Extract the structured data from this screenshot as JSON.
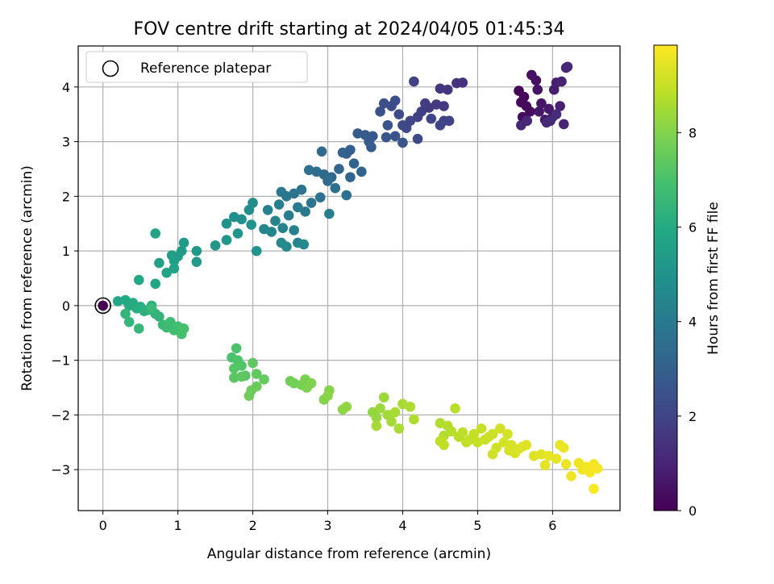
{
  "chart_data": {
    "type": "scatter",
    "title": "FOV centre drift starting at 2024/04/05 01:45:34",
    "xlabel": "Angular distance from reference (arcmin)",
    "ylabel": "Rotation from reference (arcmin)",
    "xlim": [
      -0.33,
      6.9
    ],
    "ylim": [
      -3.75,
      4.75
    ],
    "xticks": [
      0,
      1,
      2,
      3,
      4,
      5,
      6
    ],
    "xtick_labels": [
      "0",
      "1",
      "2",
      "3",
      "4",
      "5",
      "6"
    ],
    "yticks": [
      -3,
      -2,
      -1,
      0,
      1,
      2,
      3,
      4
    ],
    "ytick_labels": [
      "−3",
      "−2",
      "−1",
      "0",
      "1",
      "2",
      "3",
      "4"
    ],
    "grid": true,
    "colormap": "viridis",
    "colorbar": {
      "label": "Hours from first FF file",
      "range": [
        0,
        9.85
      ],
      "ticks": [
        0,
        2,
        4,
        6,
        8
      ],
      "tick_labels": [
        "0",
        "2",
        "4",
        "6",
        "8"
      ]
    },
    "legend": {
      "position": "top-left",
      "entries": [
        "Reference platepar"
      ]
    },
    "reference_point": {
      "x": 0,
      "y": 0,
      "hours": 0
    },
    "points": [
      {
        "x": 5.55,
        "y": 3.93,
        "t": 0.1
      },
      {
        "x": 5.62,
        "y": 3.82,
        "t": 0.15
      },
      {
        "x": 5.58,
        "y": 3.72,
        "t": 0.2
      },
      {
        "x": 5.65,
        "y": 3.65,
        "t": 0.25
      },
      {
        "x": 5.7,
        "y": 3.55,
        "t": 0.3
      },
      {
        "x": 5.6,
        "y": 3.45,
        "t": 0.35
      },
      {
        "x": 5.72,
        "y": 4.22,
        "t": 0.4
      },
      {
        "x": 5.78,
        "y": 4.12,
        "t": 0.45
      },
      {
        "x": 5.8,
        "y": 3.95,
        "t": 0.5
      },
      {
        "x": 5.85,
        "y": 3.7,
        "t": 0.55
      },
      {
        "x": 5.82,
        "y": 3.55,
        "t": 0.6
      },
      {
        "x": 5.9,
        "y": 3.4,
        "t": 0.65
      },
      {
        "x": 5.95,
        "y": 3.6,
        "t": 0.7
      },
      {
        "x": 6.0,
        "y": 3.45,
        "t": 0.75
      },
      {
        "x": 6.02,
        "y": 3.95,
        "t": 0.8
      },
      {
        "x": 6.05,
        "y": 4.08,
        "t": 0.85
      },
      {
        "x": 6.1,
        "y": 3.65,
        "t": 0.9
      },
      {
        "x": 6.12,
        "y": 4.1,
        "t": 0.95
      },
      {
        "x": 6.15,
        "y": 3.32,
        "t": 1.0
      },
      {
        "x": 6.2,
        "y": 4.37,
        "t": 1.05
      },
      {
        "x": 6.18,
        "y": 4.35,
        "t": 1.1
      },
      {
        "x": 5.58,
        "y": 3.3,
        "t": 1.12
      },
      {
        "x": 5.66,
        "y": 3.38,
        "t": 1.15
      },
      {
        "x": 5.92,
        "y": 3.35,
        "t": 1.18
      },
      {
        "x": 5.97,
        "y": 3.38,
        "t": 1.2
      },
      {
        "x": 6.05,
        "y": 3.5,
        "t": 1.22
      },
      {
        "x": 4.8,
        "y": 4.08,
        "t": 1.4
      },
      {
        "x": 4.72,
        "y": 4.07,
        "t": 1.45
      },
      {
        "x": 4.6,
        "y": 3.95,
        "t": 1.5
      },
      {
        "x": 4.5,
        "y": 3.97,
        "t": 1.55
      },
      {
        "x": 4.55,
        "y": 3.65,
        "t": 1.6
      },
      {
        "x": 4.45,
        "y": 3.68,
        "t": 1.65
      },
      {
        "x": 4.35,
        "y": 3.62,
        "t": 1.7
      },
      {
        "x": 4.3,
        "y": 3.7,
        "t": 1.75
      },
      {
        "x": 4.25,
        "y": 3.55,
        "t": 1.8
      },
      {
        "x": 4.2,
        "y": 3.45,
        "t": 1.85
      },
      {
        "x": 4.15,
        "y": 4.1,
        "t": 1.9
      },
      {
        "x": 4.55,
        "y": 3.38,
        "t": 1.92
      },
      {
        "x": 4.62,
        "y": 3.38,
        "t": 1.95
      },
      {
        "x": 4.5,
        "y": 3.3,
        "t": 1.98
      },
      {
        "x": 4.38,
        "y": 3.42,
        "t": 2.0
      },
      {
        "x": 4.1,
        "y": 3.38,
        "t": 2.05
      },
      {
        "x": 4.05,
        "y": 3.25,
        "t": 2.1
      },
      {
        "x": 4.0,
        "y": 3.3,
        "t": 2.15
      },
      {
        "x": 4.2,
        "y": 3.05,
        "t": 2.2
      },
      {
        "x": 3.95,
        "y": 3.5,
        "t": 2.25
      },
      {
        "x": 3.9,
        "y": 3.75,
        "t": 2.3
      },
      {
        "x": 3.85,
        "y": 3.65,
        "t": 2.35
      },
      {
        "x": 3.75,
        "y": 3.7,
        "t": 2.4
      },
      {
        "x": 3.7,
        "y": 3.55,
        "t": 2.45
      },
      {
        "x": 3.8,
        "y": 3.3,
        "t": 2.5
      },
      {
        "x": 3.9,
        "y": 3.1,
        "t": 2.55
      },
      {
        "x": 4.0,
        "y": 2.98,
        "t": 2.6
      },
      {
        "x": 3.78,
        "y": 3.08,
        "t": 2.65
      },
      {
        "x": 3.6,
        "y": 3.1,
        "t": 2.7
      },
      {
        "x": 3.55,
        "y": 3.0,
        "t": 2.75
      },
      {
        "x": 3.5,
        "y": 3.12,
        "t": 2.8
      },
      {
        "x": 3.4,
        "y": 3.15,
        "t": 2.85
      },
      {
        "x": 3.58,
        "y": 2.9,
        "t": 2.9
      },
      {
        "x": 3.3,
        "y": 2.85,
        "t": 2.95
      },
      {
        "x": 3.25,
        "y": 2.78,
        "t": 3.0
      },
      {
        "x": 3.2,
        "y": 2.8,
        "t": 3.05
      },
      {
        "x": 3.35,
        "y": 2.6,
        "t": 3.1
      },
      {
        "x": 3.45,
        "y": 2.45,
        "t": 3.15
      },
      {
        "x": 3.3,
        "y": 2.35,
        "t": 3.2
      },
      {
        "x": 3.15,
        "y": 2.5,
        "t": 3.25
      },
      {
        "x": 3.05,
        "y": 2.35,
        "t": 3.3
      },
      {
        "x": 2.95,
        "y": 2.4,
        "t": 3.35
      },
      {
        "x": 2.92,
        "y": 2.82,
        "t": 3.4
      },
      {
        "x": 3.0,
        "y": 2.28,
        "t": 3.45
      },
      {
        "x": 2.85,
        "y": 2.45,
        "t": 3.5
      },
      {
        "x": 2.75,
        "y": 2.48,
        "t": 3.55
      },
      {
        "x": 3.1,
        "y": 2.15,
        "t": 3.6
      },
      {
        "x": 3.25,
        "y": 2.02,
        "t": 3.65
      },
      {
        "x": 2.9,
        "y": 1.98,
        "t": 3.7
      },
      {
        "x": 2.78,
        "y": 1.88,
        "t": 3.75
      },
      {
        "x": 2.65,
        "y": 2.12,
        "t": 3.8
      },
      {
        "x": 2.55,
        "y": 2.05,
        "t": 3.85
      },
      {
        "x": 2.45,
        "y": 2.0,
        "t": 3.9
      },
      {
        "x": 2.38,
        "y": 2.08,
        "t": 3.95
      },
      {
        "x": 2.7,
        "y": 1.72,
        "t": 4.0
      },
      {
        "x": 2.6,
        "y": 1.8,
        "t": 4.05
      },
      {
        "x": 2.48,
        "y": 1.65,
        "t": 4.1
      },
      {
        "x": 3.02,
        "y": 1.68,
        "t": 4.15
      },
      {
        "x": 2.35,
        "y": 1.85,
        "t": 4.2
      },
      {
        "x": 2.2,
        "y": 1.75,
        "t": 4.25
      },
      {
        "x": 2.55,
        "y": 1.38,
        "t": 4.3
      },
      {
        "x": 2.4,
        "y": 1.42,
        "t": 4.35
      },
      {
        "x": 2.3,
        "y": 1.55,
        "t": 4.4
      },
      {
        "x": 2.25,
        "y": 1.35,
        "t": 4.45
      },
      {
        "x": 2.15,
        "y": 1.4,
        "t": 4.5
      },
      {
        "x": 2.6,
        "y": 1.15,
        "t": 4.55
      },
      {
        "x": 2.38,
        "y": 1.15,
        "t": 4.6
      },
      {
        "x": 2.68,
        "y": 1.12,
        "t": 4.65
      },
      {
        "x": 2.45,
        "y": 1.08,
        "t": 4.7
      },
      {
        "x": 2.0,
        "y": 1.88,
        "t": 4.75
      },
      {
        "x": 1.95,
        "y": 1.75,
        "t": 4.8
      },
      {
        "x": 1.85,
        "y": 1.58,
        "t": 4.85
      },
      {
        "x": 1.75,
        "y": 1.62,
        "t": 4.9
      },
      {
        "x": 1.65,
        "y": 1.5,
        "t": 4.95
      },
      {
        "x": 1.98,
        "y": 1.48,
        "t": 5.0
      },
      {
        "x": 1.8,
        "y": 1.32,
        "t": 5.05
      },
      {
        "x": 2.05,
        "y": 1.0,
        "t": 5.1
      },
      {
        "x": 1.65,
        "y": 1.2,
        "t": 5.15
      },
      {
        "x": 1.5,
        "y": 1.1,
        "t": 5.2
      },
      {
        "x": 1.25,
        "y": 1.0,
        "t": 5.25
      },
      {
        "x": 1.25,
        "y": 0.8,
        "t": 5.3
      },
      {
        "x": 1.08,
        "y": 1.15,
        "t": 5.35
      },
      {
        "x": 1.05,
        "y": 1.0,
        "t": 5.4
      },
      {
        "x": 1.0,
        "y": 0.9,
        "t": 5.45
      },
      {
        "x": 0.92,
        "y": 0.92,
        "t": 5.5
      },
      {
        "x": 0.95,
        "y": 0.82,
        "t": 5.55
      },
      {
        "x": 0.75,
        "y": 0.78,
        "t": 5.6
      },
      {
        "x": 0.95,
        "y": 0.68,
        "t": 5.65
      },
      {
        "x": 0.85,
        "y": 0.6,
        "t": 5.7
      },
      {
        "x": 0.7,
        "y": 1.32,
        "t": 5.75
      },
      {
        "x": 0.7,
        "y": 0.4,
        "t": 5.8
      },
      {
        "x": 0.48,
        "y": 0.47,
        "t": 5.85
      },
      {
        "x": 0.2,
        "y": 0.08,
        "t": 5.9
      },
      {
        "x": 0.3,
        "y": 0.1,
        "t": 5.95
      },
      {
        "x": 0.35,
        "y": 0.0,
        "t": 6.0
      },
      {
        "x": 0.4,
        "y": 0.05,
        "t": 6.05
      },
      {
        "x": 0.45,
        "y": -0.05,
        "t": 6.1
      },
      {
        "x": 0.5,
        "y": -0.02,
        "t": 6.15
      },
      {
        "x": 0.55,
        "y": -0.1,
        "t": 6.2
      },
      {
        "x": 0.6,
        "y": -0.08,
        "t": 6.25
      },
      {
        "x": 0.65,
        "y": 0.0,
        "t": 6.3
      },
      {
        "x": 0.7,
        "y": -0.15,
        "t": 6.35
      },
      {
        "x": 0.75,
        "y": -0.2,
        "t": 6.4
      },
      {
        "x": 0.3,
        "y": -0.15,
        "t": 6.45
      },
      {
        "x": 0.35,
        "y": -0.3,
        "t": 6.5
      },
      {
        "x": 0.48,
        "y": -0.42,
        "t": 6.55
      },
      {
        "x": 0.65,
        "y": -0.05,
        "t": 6.6
      },
      {
        "x": 0.8,
        "y": -0.35,
        "t": 6.65
      },
      {
        "x": 0.85,
        "y": -0.4,
        "t": 6.7
      },
      {
        "x": 0.9,
        "y": -0.3,
        "t": 6.75
      },
      {
        "x": 0.95,
        "y": -0.45,
        "t": 6.8
      },
      {
        "x": 1.0,
        "y": -0.38,
        "t": 6.85
      },
      {
        "x": 1.05,
        "y": -0.52,
        "t": 6.9
      },
      {
        "x": 1.08,
        "y": -0.42,
        "t": 6.95
      },
      {
        "x": 1.72,
        "y": -0.95,
        "t": 7.0
      },
      {
        "x": 1.78,
        "y": -0.78,
        "t": 7.05
      },
      {
        "x": 1.8,
        "y": -1.0,
        "t": 7.1
      },
      {
        "x": 1.85,
        "y": -1.1,
        "t": 7.15
      },
      {
        "x": 1.75,
        "y": -1.15,
        "t": 7.2
      },
      {
        "x": 1.9,
        "y": -1.28,
        "t": 7.25
      },
      {
        "x": 1.75,
        "y": -1.32,
        "t": 7.3
      },
      {
        "x": 1.85,
        "y": -1.3,
        "t": 7.35
      },
      {
        "x": 2.0,
        "y": -1.05,
        "t": 7.4
      },
      {
        "x": 2.05,
        "y": -1.25,
        "t": 7.45
      },
      {
        "x": 2.15,
        "y": -1.35,
        "t": 7.5
      },
      {
        "x": 2.05,
        "y": -1.48,
        "t": 7.55
      },
      {
        "x": 1.98,
        "y": -1.55,
        "t": 7.6
      },
      {
        "x": 1.95,
        "y": -1.65,
        "t": 7.65
      },
      {
        "x": 2.5,
        "y": -1.38,
        "t": 7.7
      },
      {
        "x": 2.55,
        "y": -1.42,
        "t": 7.75
      },
      {
        "x": 2.65,
        "y": -1.45,
        "t": 7.8
      },
      {
        "x": 2.7,
        "y": -1.35,
        "t": 7.85
      },
      {
        "x": 2.72,
        "y": -1.5,
        "t": 7.9
      },
      {
        "x": 2.78,
        "y": -1.42,
        "t": 7.95
      },
      {
        "x": 2.95,
        "y": -1.72,
        "t": 8.0
      },
      {
        "x": 3.02,
        "y": -1.55,
        "t": 8.05
      },
      {
        "x": 3.0,
        "y": -1.65,
        "t": 8.1
      },
      {
        "x": 3.2,
        "y": -1.9,
        "t": 8.15
      },
      {
        "x": 3.25,
        "y": -1.85,
        "t": 8.2
      },
      {
        "x": 3.6,
        "y": -1.95,
        "t": 8.25
      },
      {
        "x": 3.65,
        "y": -2.05,
        "t": 8.3
      },
      {
        "x": 3.7,
        "y": -1.88,
        "t": 8.35
      },
      {
        "x": 3.75,
        "y": -1.68,
        "t": 8.4
      },
      {
        "x": 3.8,
        "y": -2.0,
        "t": 8.45
      },
      {
        "x": 3.85,
        "y": -2.12,
        "t": 8.5
      },
      {
        "x": 3.65,
        "y": -2.2,
        "t": 8.52
      },
      {
        "x": 3.9,
        "y": -1.95,
        "t": 8.55
      },
      {
        "x": 3.95,
        "y": -2.25,
        "t": 8.58
      },
      {
        "x": 4.0,
        "y": -1.8,
        "t": 8.6
      },
      {
        "x": 4.1,
        "y": -1.85,
        "t": 8.62
      },
      {
        "x": 4.15,
        "y": -2.08,
        "t": 8.65
      },
      {
        "x": 4.5,
        "y": -2.15,
        "t": 8.7
      },
      {
        "x": 4.55,
        "y": -2.38,
        "t": 8.72
      },
      {
        "x": 4.6,
        "y": -2.2,
        "t": 8.75
      },
      {
        "x": 4.65,
        "y": -2.3,
        "t": 8.78
      },
      {
        "x": 4.7,
        "y": -1.88,
        "t": 8.8
      },
      {
        "x": 4.75,
        "y": -2.4,
        "t": 8.82
      },
      {
        "x": 4.8,
        "y": -2.32,
        "t": 8.85
      },
      {
        "x": 4.5,
        "y": -2.48,
        "t": 8.88
      },
      {
        "x": 4.55,
        "y": -2.55,
        "t": 8.9
      },
      {
        "x": 4.85,
        "y": -2.5,
        "t": 8.92
      },
      {
        "x": 4.9,
        "y": -2.45,
        "t": 8.95
      },
      {
        "x": 4.95,
        "y": -2.35,
        "t": 8.98
      },
      {
        "x": 5.0,
        "y": -2.5,
        "t": 9.0
      },
      {
        "x": 5.05,
        "y": -2.25,
        "t": 9.02
      },
      {
        "x": 5.1,
        "y": -2.45,
        "t": 9.05
      },
      {
        "x": 5.15,
        "y": -2.4,
        "t": 9.08
      },
      {
        "x": 5.2,
        "y": -2.35,
        "t": 9.1
      },
      {
        "x": 5.25,
        "y": -2.6,
        "t": 9.12
      },
      {
        "x": 5.2,
        "y": -2.72,
        "t": 9.15
      },
      {
        "x": 5.3,
        "y": -2.25,
        "t": 9.18
      },
      {
        "x": 5.35,
        "y": -2.5,
        "t": 9.2
      },
      {
        "x": 5.4,
        "y": -2.35,
        "t": 9.22
      },
      {
        "x": 5.42,
        "y": -2.65,
        "t": 9.25
      },
      {
        "x": 5.45,
        "y": -2.55,
        "t": 9.28
      },
      {
        "x": 5.5,
        "y": -2.7,
        "t": 9.3
      },
      {
        "x": 5.55,
        "y": -2.62,
        "t": 9.32
      },
      {
        "x": 5.6,
        "y": -2.58,
        "t": 9.35
      },
      {
        "x": 5.65,
        "y": -2.55,
        "t": 9.38
      },
      {
        "x": 5.75,
        "y": -2.75,
        "t": 9.4
      },
      {
        "x": 5.85,
        "y": -2.72,
        "t": 9.42
      },
      {
        "x": 5.9,
        "y": -2.92,
        "t": 9.45
      },
      {
        "x": 5.95,
        "y": -2.75,
        "t": 9.48
      },
      {
        "x": 6.05,
        "y": -2.8,
        "t": 9.5
      },
      {
        "x": 6.1,
        "y": -2.55,
        "t": 9.52
      },
      {
        "x": 6.15,
        "y": -2.6,
        "t": 9.55
      },
      {
        "x": 6.18,
        "y": -2.9,
        "t": 9.58
      },
      {
        "x": 6.25,
        "y": -3.12,
        "t": 9.6
      },
      {
        "x": 6.35,
        "y": -2.88,
        "t": 9.62
      },
      {
        "x": 6.4,
        "y": -3.0,
        "t": 9.65
      },
      {
        "x": 6.45,
        "y": -2.95,
        "t": 9.68
      },
      {
        "x": 6.5,
        "y": -3.05,
        "t": 9.7
      },
      {
        "x": 6.55,
        "y": -2.9,
        "t": 9.72
      },
      {
        "x": 6.6,
        "y": -2.98,
        "t": 9.75
      },
      {
        "x": 6.55,
        "y": -3.35,
        "t": 9.8
      }
    ]
  }
}
